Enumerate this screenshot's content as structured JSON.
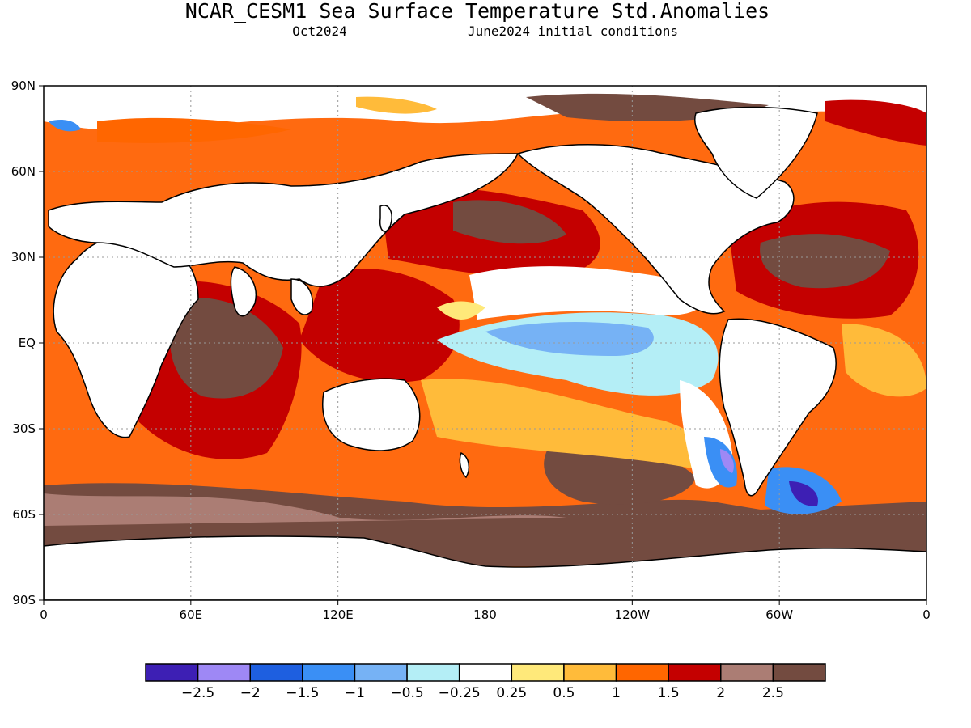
{
  "title": "NCAR_CESM1 Sea Surface Temperature Std.Anomalies",
  "valid_month": "Oct2024",
  "initial_conditions": "June2024 initial conditions",
  "x_ticks": [
    "0",
    "60E",
    "120E",
    "180",
    "120W",
    "60W",
    "0"
  ],
  "y_ticks": [
    "90N",
    "60N",
    "30N",
    "EQ",
    "30S",
    "60S",
    "90S"
  ],
  "colorbar": {
    "colors": [
      "#3d1fb4",
      "#9e88f5",
      "#1e5fe0",
      "#3a8ff5",
      "#76b2f5",
      "#b4eef6",
      "#ffffff",
      "#ffe97a",
      "#ffbb3a",
      "#ff6600",
      "#c40000",
      "#ab7d74",
      "#734b40"
    ],
    "labels": [
      "-2.5",
      "-2",
      "-1.5",
      "-1",
      "-0.5",
      "-0.25",
      "0.25",
      "0.5",
      "1",
      "1.5",
      "2",
      "2.5"
    ]
  },
  "palette": {
    "land": "#ffffff",
    "frame": "#000000",
    "grid": "#aaaaaa"
  }
}
